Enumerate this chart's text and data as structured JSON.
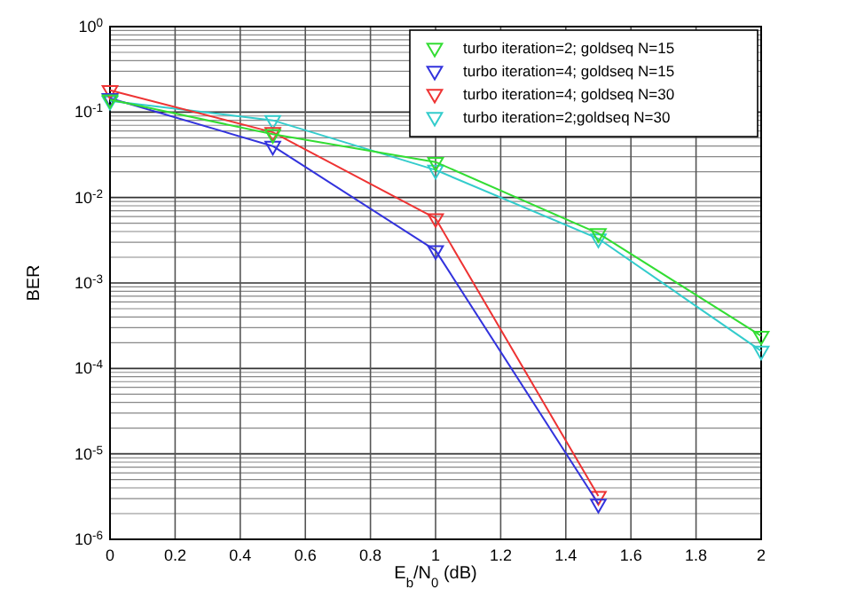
{
  "chart_data": {
    "type": "line",
    "xlabel": "E$_{b}$/N$_{0}$ (dB)",
    "ylabel": "BER",
    "x": [
      0,
      0.5,
      1,
      1.5,
      2
    ],
    "series": [
      {
        "name": "turbo iteration=2; goldseq N=15",
        "color": "#33dd33",
        "values": [
          0.14,
          0.055,
          0.026,
          0.0038,
          0.00024
        ]
      },
      {
        "name": "turbo iteration=4; goldseq N=15",
        "color": "#3333dd",
        "values": [
          0.145,
          0.04,
          0.0024,
          2.6e-06,
          null
        ]
      },
      {
        "name": "turbo iteration=4; goldseq N=30",
        "color": "#ee3333",
        "values": [
          0.18,
          0.058,
          0.0057,
          3.2e-06,
          null
        ]
      },
      {
        "name": "turbo iteration=2;goldseq N=30",
        "color": "#33cccc",
        "values": [
          0.135,
          0.08,
          0.021,
          0.0033,
          0.00016
        ]
      }
    ],
    "log": "y",
    "xlim": [
      0,
      2
    ],
    "xticks": [
      0,
      0.2,
      0.4,
      0.6,
      0.8,
      1,
      1.2,
      1.4,
      1.6,
      1.8,
      2
    ],
    "ylim": [
      1e-06,
      1
    ],
    "yticks": [
      {
        "value": 1e-06,
        "label": "10$^{-6}$"
      },
      {
        "value": 1e-05,
        "label": "10$^{-5}$"
      },
      {
        "value": 0.0001,
        "label": "10$^{-4}$"
      },
      {
        "value": 0.001,
        "label": "10$^{-3}$"
      },
      {
        "value": 0.01,
        "label": "10$^{-2}$"
      },
      {
        "value": 0.1,
        "label": "10$^{-1}$"
      },
      {
        "value": 1,
        "label": "10$^{0}$"
      }
    ],
    "grid": true,
    "legend": "top right",
    "marker": "triangle",
    "line_style": "solid"
  }
}
